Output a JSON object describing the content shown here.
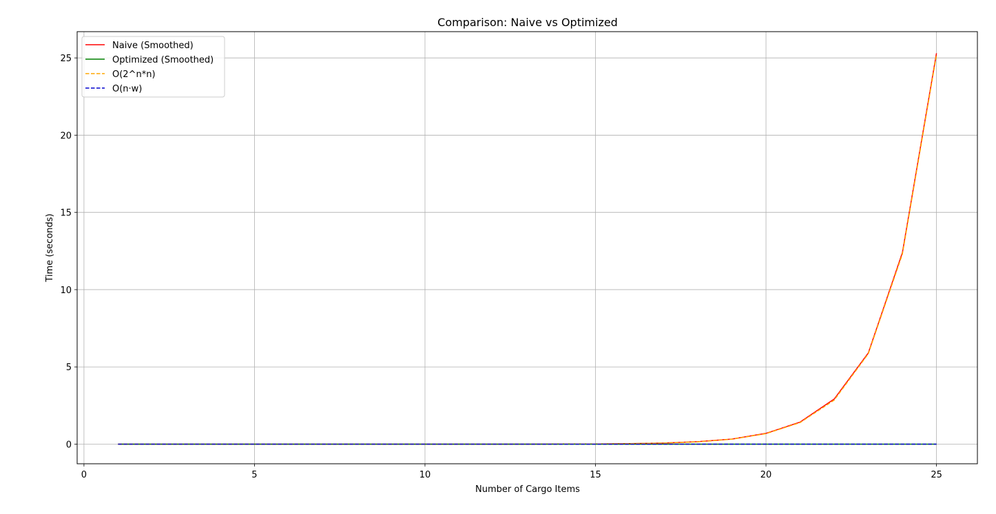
{
  "chart_data": {
    "type": "line",
    "title": "Comparison: Naive vs Optimized",
    "xlabel": "Number of Cargo Items",
    "ylabel": "Time (seconds)",
    "xlim": [
      -0.2,
      26.2
    ],
    "ylim": [
      -1.27,
      26.7
    ],
    "xticks": [
      0,
      5,
      10,
      15,
      20,
      25
    ],
    "yticks": [
      0,
      5,
      10,
      15,
      20,
      25
    ],
    "grid": true,
    "legend_position": "top-left",
    "x": [
      1,
      2,
      3,
      4,
      5,
      6,
      7,
      8,
      9,
      10,
      11,
      12,
      13,
      14,
      15,
      16,
      17,
      18,
      19,
      20,
      21,
      22,
      23,
      24,
      25
    ],
    "series": [
      {
        "name": "Naive (Smoothed)",
        "color": "#ff0000",
        "style": "solid",
        "values": [
          0,
          0,
          0,
          0,
          0,
          0,
          0,
          0,
          0,
          0,
          0,
          0,
          0,
          0.01,
          0.01,
          0.03,
          0.07,
          0.16,
          0.33,
          0.7,
          1.43,
          2.92,
          5.9,
          12.4,
          25.3
        ]
      },
      {
        "name": "Optimized (Smoothed)",
        "color": "#008000",
        "style": "solid",
        "values": [
          0,
          0,
          0,
          0,
          0,
          0,
          0,
          0,
          0,
          0,
          0,
          0,
          0,
          0,
          0,
          0,
          0,
          0,
          0,
          0,
          0,
          0,
          0,
          0,
          0
        ]
      },
      {
        "name": "O(2^n*n)",
        "color": "#ffa500",
        "style": "dashed",
        "values": [
          0,
          0,
          0,
          0,
          0,
          0,
          0,
          0,
          0,
          0,
          0,
          0,
          0,
          0.01,
          0.01,
          0.03,
          0.07,
          0.15,
          0.32,
          0.68,
          1.4,
          2.85,
          5.85,
          12.3,
          25.2
        ]
      },
      {
        "name": "O(n·w)",
        "color": "#0000cd",
        "style": "dashed",
        "values": [
          0,
          0,
          0,
          0,
          0,
          0,
          0,
          0,
          0,
          0,
          0,
          0,
          0,
          0,
          0,
          0,
          0,
          0,
          0,
          0,
          0,
          0,
          0,
          0,
          0
        ]
      }
    ]
  }
}
